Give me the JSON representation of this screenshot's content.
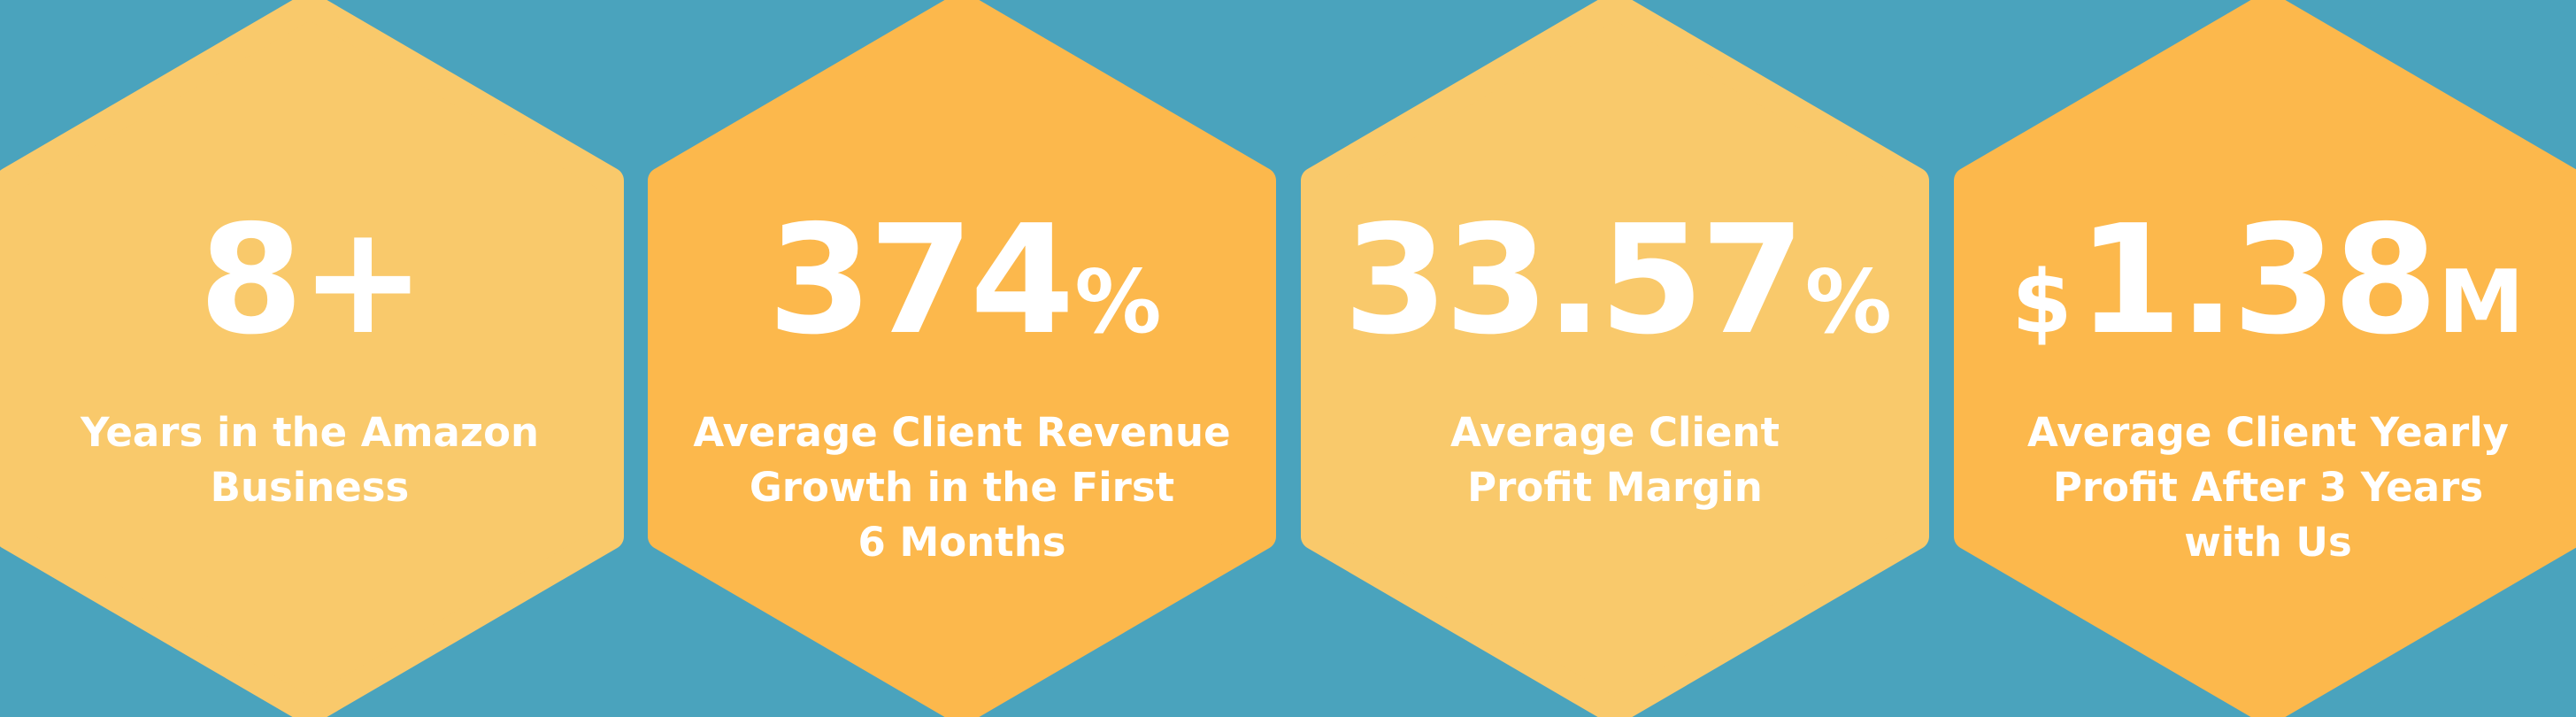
{
  "colors": {
    "background": "#4aa3bd",
    "hex_light": "#f9c96b",
    "hex_dark": "#fcb84c",
    "text": "#ffffff"
  },
  "stats": [
    {
      "prefix": "",
      "number": "8+",
      "suffix": "",
      "caption_lines": [
        "Years in the Amazon",
        "Business"
      ]
    },
    {
      "prefix": "",
      "number": "374",
      "suffix": "%",
      "caption_lines": [
        "Average Client Revenue",
        "Growth in the First",
        "6 Months"
      ]
    },
    {
      "prefix": "",
      "number": "33.57",
      "suffix": "%",
      "caption_lines": [
        "Average Client",
        "Profit Margin"
      ]
    },
    {
      "prefix": "$",
      "number": "1.38",
      "suffix": "M",
      "caption_lines": [
        "Average Client Yearly",
        "Profit After 3 Years",
        "with Us"
      ]
    }
  ]
}
